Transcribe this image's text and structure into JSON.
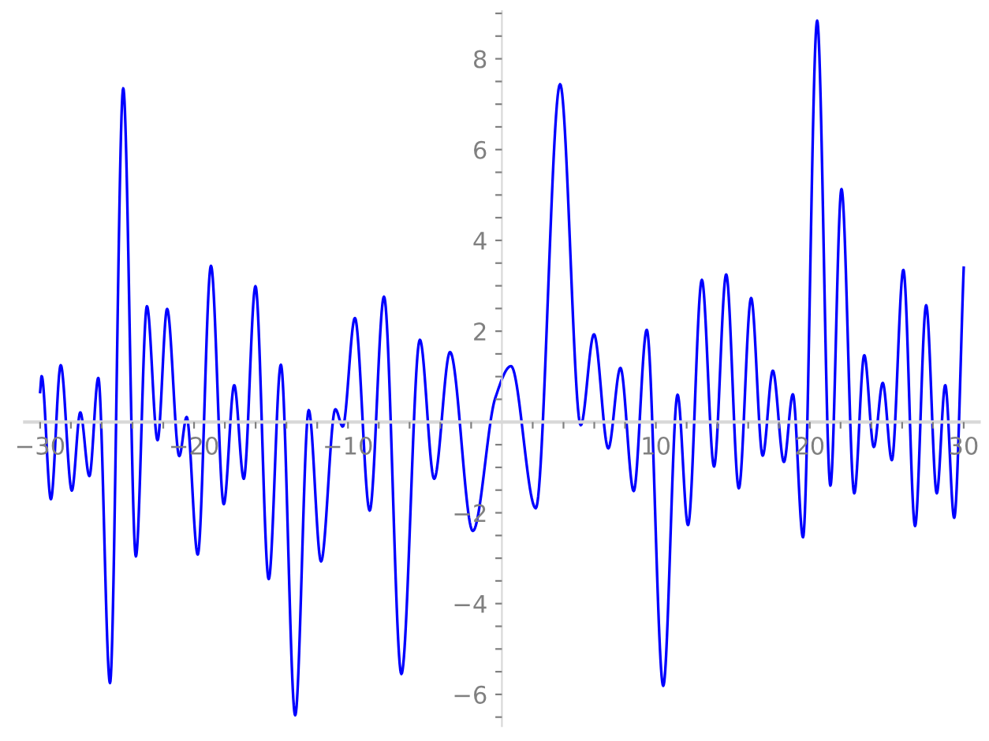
{
  "chart_data": {
    "type": "line",
    "x": [
      -30,
      -29.9,
      -29.3,
      -28.66,
      -27.94,
      -27.39,
      -26.8,
      -26.22,
      -25.46,
      -24.6,
      -23.78,
      -23.06,
      -22.37,
      -21.75,
      -20.96,
      -20.48,
      -19.76,
      -18.9,
      -18.07,
      -17.39,
      -16.77,
      -16.01,
      -15.15,
      -14.36,
      -13.43,
      -12.55,
      -11.75,
      -10.82,
      -10.34,
      -9.55,
      -8.59,
      -7.66,
      -6.53,
      -5.33,
      -4.4,
      -3.37,
      -1.89,
      -0.44,
      0.59,
      2.2,
      3.78,
      5.12,
      5.98,
      6.91,
      7.7,
      8.56,
      9.41,
      10.48,
      11.41,
      12.09,
      12.99,
      13.78,
      14.57,
      15.39,
      16.19,
      16.94,
      17.6,
      18.32,
      18.9,
      19.56,
      20.48,
      21.34,
      22.06,
      22.89,
      23.54,
      24.16,
      24.74,
      25.33,
      26.08,
      26.84,
      27.56,
      28.25,
      28.8,
      29.38,
      30
    ],
    "series": [
      {
        "color": "#0000ff",
        "values": [
          0.66,
          1.01,
          -1.7,
          1.25,
          -1.51,
          0.21,
          -1.19,
          0.97,
          -5.75,
          7.35,
          -2.96,
          2.55,
          -0.4,
          2.49,
          -0.75,
          0.11,
          -2.92,
          3.44,
          -1.81,
          0.81,
          -1.25,
          2.99,
          -3.46,
          1.26,
          -6.46,
          0.26,
          -3.07,
          0.28,
          -0.1,
          2.29,
          -1.95,
          2.76,
          -5.55,
          1.81,
          -1.25,
          1.54,
          -2.4,
          0.52,
          1.23,
          -1.9,
          7.44,
          -0.07,
          1.93,
          -0.58,
          1.19,
          -1.52,
          2.03,
          -5.81,
          0.6,
          -2.27,
          3.13,
          -0.98,
          3.25,
          -1.46,
          2.73,
          -0.74,
          1.13,
          -0.88,
          0.61,
          -2.54,
          8.84,
          -1.4,
          5.13,
          -1.57,
          1.47,
          -0.55,
          0.86,
          -0.84,
          3.35,
          -2.29,
          2.57,
          -1.57,
          0.81,
          -2.11,
          3.4
        ]
      }
    ],
    "xlim": [
      -31,
      31
    ],
    "ylim": [
      -6.7,
      9.05
    ],
    "xticks": [
      {
        "value": -30,
        "label": "−30"
      },
      {
        "value": -20,
        "label": "−20"
      },
      {
        "value": -10,
        "label": "−10"
      },
      10,
      20,
      30,
      {
        "value": -28,
        "label": null
      },
      {
        "value": -26,
        "label": null
      },
      {
        "value": -24,
        "label": null
      },
      {
        "value": -22,
        "label": null
      },
      {
        "value": -18,
        "label": null
      },
      {
        "value": -16,
        "label": null
      },
      {
        "value": -14,
        "label": null
      },
      {
        "value": -12,
        "label": null
      },
      {
        "value": -8,
        "label": null
      },
      {
        "value": -6,
        "label": null
      },
      {
        "value": -4,
        "label": null
      },
      {
        "value": -2,
        "label": null
      },
      {
        "value": 2,
        "label": null
      },
      {
        "value": 4,
        "label": null
      },
      {
        "value": 6,
        "label": null
      },
      {
        "value": 8,
        "label": null
      },
      {
        "value": 12,
        "label": null
      },
      {
        "value": 14,
        "label": null
      },
      {
        "value": 16,
        "label": null
      },
      {
        "value": 18,
        "label": null
      },
      {
        "value": 22,
        "label": null
      },
      {
        "value": 24,
        "label": null
      },
      {
        "value": 26,
        "label": null
      },
      {
        "value": 28,
        "label": null
      }
    ],
    "yticks": [
      {
        "value": -6,
        "label": "−6"
      },
      {
        "value": -4,
        "label": "−4"
      },
      {
        "value": -2,
        "label": "−2"
      },
      2,
      4,
      6,
      8,
      {
        "value": -6.5,
        "label": null
      },
      {
        "value": -5.5,
        "label": null
      },
      {
        "value": -5,
        "label": null
      },
      {
        "value": -4.5,
        "label": null
      },
      {
        "value": -3.5,
        "label": null
      },
      {
        "value": -3,
        "label": null
      },
      {
        "value": -2.5,
        "label": null
      },
      {
        "value": -1.5,
        "label": null
      },
      {
        "value": -1,
        "label": null
      },
      {
        "value": -0.5,
        "label": null
      },
      {
        "value": 0.5,
        "label": null
      },
      {
        "value": 1,
        "label": null
      },
      {
        "value": 1.5,
        "label": null
      },
      {
        "value": 2.5,
        "label": null
      },
      {
        "value": 3,
        "label": null
      },
      {
        "value": 3.5,
        "label": null
      },
      {
        "value": 4.5,
        "label": null
      },
      {
        "value": 5,
        "label": null
      },
      {
        "value": 5.5,
        "label": null
      },
      {
        "value": 6.5,
        "label": null
      },
      {
        "value": 7,
        "label": null
      },
      {
        "value": 7.5,
        "label": null
      },
      {
        "value": 8.5,
        "label": null
      },
      {
        "value": 9,
        "label": null
      }
    ],
    "grid": false,
    "legend": false,
    "marker": "none",
    "line_style": "solid"
  }
}
